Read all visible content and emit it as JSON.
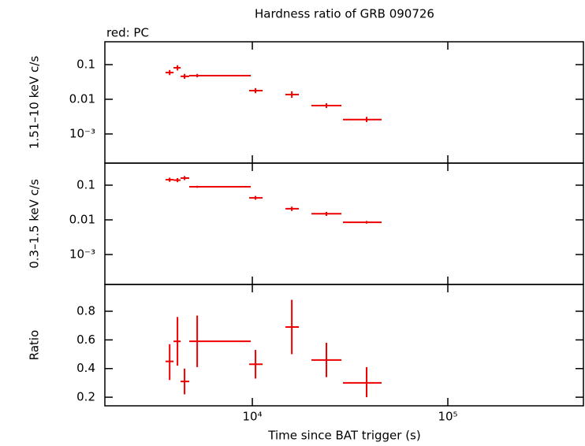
{
  "chart_data": {
    "type": "errorbar",
    "title": "Hardness ratio of GRB 090726",
    "subtitle": "red: PC",
    "xlabel": "Time since BAT trigger (s)",
    "xscale": "log",
    "color": "#ee0000",
    "xlim": [
      1760,
      494000
    ],
    "xticks": [
      {
        "value": 10000,
        "label": "10⁴"
      },
      {
        "value": 100000,
        "label": "10⁵"
      }
    ],
    "x": [
      3776,
      4140,
      4500,
      5223,
      10380,
      15920,
      23930,
      38430
    ],
    "x_lo": [
      3597,
      3953,
      4297,
      4757,
      9636,
      14770,
      20060,
      29080
    ],
    "x_hi": [
      3953,
      4297,
      4757,
      9816,
      11283,
      17290,
      28560,
      45830
    ],
    "panels": [
      {
        "ylabel": "1.51–10 keV c/s",
        "yscale": "log",
        "ylim": [
          0.000144,
          0.457
        ],
        "yticks": [
          0.1,
          0.01,
          {
            "value": 0.001,
            "label": "10⁻³"
          }
        ],
        "values": [
          0.059,
          0.081,
          0.046,
          0.048,
          0.0178,
          0.0137,
          0.0066,
          0.0026
        ],
        "y_lo": [
          0.05,
          0.068,
          0.039,
          0.043,
          0.015,
          0.011,
          0.0056,
          0.0022
        ],
        "y_hi": [
          0.07,
          0.096,
          0.054,
          0.054,
          0.021,
          0.017,
          0.0077,
          0.0031
        ]
      },
      {
        "ylabel": "0.3–1.5 keV c/s",
        "yscale": "log",
        "ylim": [
          0.000137,
          0.433
        ],
        "yticks": [
          0.1,
          0.01,
          {
            "value": 0.001,
            "label": "10⁻³"
          }
        ],
        "values": [
          0.144,
          0.14,
          0.16,
          0.09,
          0.043,
          0.021,
          0.015,
          0.0085
        ],
        "y_lo": [
          0.125,
          0.122,
          0.14,
          0.084,
          0.038,
          0.018,
          0.013,
          0.0078
        ],
        "y_hi": [
          0.165,
          0.16,
          0.183,
          0.096,
          0.049,
          0.024,
          0.017,
          0.0093
        ]
      },
      {
        "ylabel": "Ratio",
        "yscale": "linear",
        "ylim": [
          0.14,
          0.987
        ],
        "yticks": [
          0.2,
          0.4,
          0.6,
          0.8
        ],
        "values": [
          0.45,
          0.59,
          0.31,
          0.59,
          0.43,
          0.69,
          0.46,
          0.3
        ],
        "y_lo": [
          0.32,
          0.42,
          0.22,
          0.41,
          0.33,
          0.5,
          0.34,
          0.2
        ],
        "y_hi": [
          0.57,
          0.76,
          0.4,
          0.77,
          0.53,
          0.88,
          0.58,
          0.41
        ]
      }
    ]
  }
}
